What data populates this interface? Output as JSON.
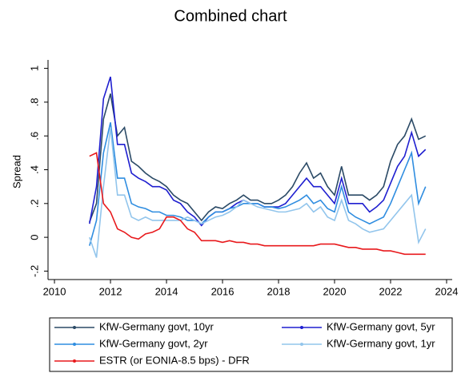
{
  "chart_data": {
    "type": "line",
    "title": "Combined chart",
    "y_label": "Spread",
    "x": [
      2011.25,
      2011.5,
      2011.75,
      2012,
      2012.25,
      2012.5,
      2012.75,
      2013,
      2013.25,
      2013.5,
      2013.75,
      2014,
      2014.25,
      2014.5,
      2014.75,
      2015,
      2015.25,
      2015.5,
      2015.75,
      2016,
      2016.25,
      2016.5,
      2016.75,
      2017,
      2017.25,
      2017.5,
      2017.75,
      2018,
      2018.25,
      2018.5,
      2018.75,
      2019,
      2019.25,
      2019.5,
      2019.75,
      2020,
      2020.25,
      2020.5,
      2020.75,
      2021,
      2021.25,
      2021.5,
      2021.75,
      2022,
      2022.25,
      2022.5,
      2022.75,
      2023,
      2023.25
    ],
    "series": [
      {
        "name": "KfW-Germany govt, 10yr",
        "color": "#2b4a66",
        "values": [
          0.09,
          0.2,
          0.7,
          0.85,
          0.6,
          0.65,
          0.45,
          0.42,
          0.38,
          0.35,
          0.33,
          0.3,
          0.25,
          0.22,
          0.2,
          0.15,
          0.1,
          0.15,
          0.18,
          0.17,
          0.2,
          0.22,
          0.25,
          0.22,
          0.22,
          0.2,
          0.2,
          0.22,
          0.25,
          0.3,
          0.38,
          0.44,
          0.35,
          0.38,
          0.3,
          0.25,
          0.42,
          0.25,
          0.25,
          0.25,
          0.22,
          0.25,
          0.3,
          0.45,
          0.55,
          0.6,
          0.7,
          0.58,
          0.6
        ]
      },
      {
        "name": "KfW-Germany govt, 5yr",
        "color": "#1f1fd0",
        "values": [
          0.08,
          0.3,
          0.82,
          0.95,
          0.55,
          0.55,
          0.38,
          0.35,
          0.33,
          0.3,
          0.3,
          0.28,
          0.22,
          0.2,
          0.15,
          0.12,
          0.07,
          0.12,
          0.15,
          0.15,
          0.17,
          0.2,
          0.22,
          0.2,
          0.2,
          0.18,
          0.18,
          0.18,
          0.2,
          0.25,
          0.3,
          0.35,
          0.3,
          0.3,
          0.25,
          0.2,
          0.35,
          0.2,
          0.2,
          0.2,
          0.15,
          0.18,
          0.22,
          0.32,
          0.42,
          0.48,
          0.62,
          0.48,
          0.52
        ]
      },
      {
        "name": "KfW-Germany govt, 2yr",
        "color": "#2f8de0",
        "values": [
          -0.05,
          0.1,
          0.5,
          0.68,
          0.35,
          0.35,
          0.2,
          0.18,
          0.17,
          0.15,
          0.15,
          0.13,
          0.13,
          0.12,
          0.1,
          0.1,
          0.08,
          0.12,
          0.15,
          0.15,
          0.17,
          0.18,
          0.2,
          0.2,
          0.2,
          0.18,
          0.18,
          0.17,
          0.18,
          0.2,
          0.22,
          0.25,
          0.2,
          0.22,
          0.17,
          0.15,
          0.3,
          0.15,
          0.12,
          0.1,
          0.08,
          0.1,
          0.12,
          0.2,
          0.3,
          0.4,
          0.5,
          0.2,
          0.3
        ]
      },
      {
        "name": "KfW-Germany govt, 1yr",
        "color": "#92c5ec",
        "values": [
          0,
          -0.12,
          0.3,
          0.65,
          0.25,
          0.25,
          0.12,
          0.1,
          0.12,
          0.1,
          0.1,
          0.1,
          0.1,
          0.1,
          0.12,
          0.1,
          0.08,
          0.1,
          0.12,
          0.13,
          0.15,
          0.18,
          0.22,
          0.2,
          0.18,
          0.17,
          0.16,
          0.15,
          0.15,
          0.16,
          0.17,
          0.2,
          0.15,
          0.18,
          0.12,
          0.1,
          0.22,
          0.1,
          0.08,
          0.05,
          0.03,
          0.04,
          0.05,
          0.1,
          0.15,
          0.2,
          0.25,
          -0.03,
          0.05
        ]
      },
      {
        "name": "ESTR (or EONIA-8.5 bps) - DFR",
        "color": "#e8191c",
        "values": [
          0.48,
          0.5,
          0.2,
          0.15,
          0.05,
          0.03,
          0,
          -0.01,
          0.02,
          0.03,
          0.05,
          0.12,
          0.12,
          0.1,
          0.05,
          0.03,
          -0.02,
          -0.02,
          -0.02,
          -0.03,
          -0.02,
          -0.03,
          -0.03,
          -0.04,
          -0.04,
          -0.05,
          -0.05,
          -0.05,
          -0.05,
          -0.05,
          -0.05,
          -0.05,
          -0.05,
          -0.04,
          -0.04,
          -0.04,
          -0.05,
          -0.06,
          -0.06,
          -0.07,
          -0.07,
          -0.07,
          -0.08,
          -0.08,
          -0.09,
          -0.1,
          -0.1,
          -0.1,
          -0.1
        ]
      }
    ],
    "xlim": [
      2009.77,
      2024.2
    ],
    "xticks": [
      2010,
      2012,
      2014,
      2016,
      2018,
      2020,
      2022,
      2024
    ],
    "ylim": [
      -0.25,
      1.05
    ],
    "yticks": [
      {
        "value": -0.2,
        "label": "-.2"
      },
      0,
      {
        "value": 0.2,
        "label": ".2"
      },
      {
        "value": 0.4,
        "label": ".4"
      },
      {
        "value": 0.6,
        "label": ".6"
      },
      {
        "value": 0.8,
        "label": ".8"
      },
      1
    ],
    "grid": false,
    "legend": "bottom"
  }
}
